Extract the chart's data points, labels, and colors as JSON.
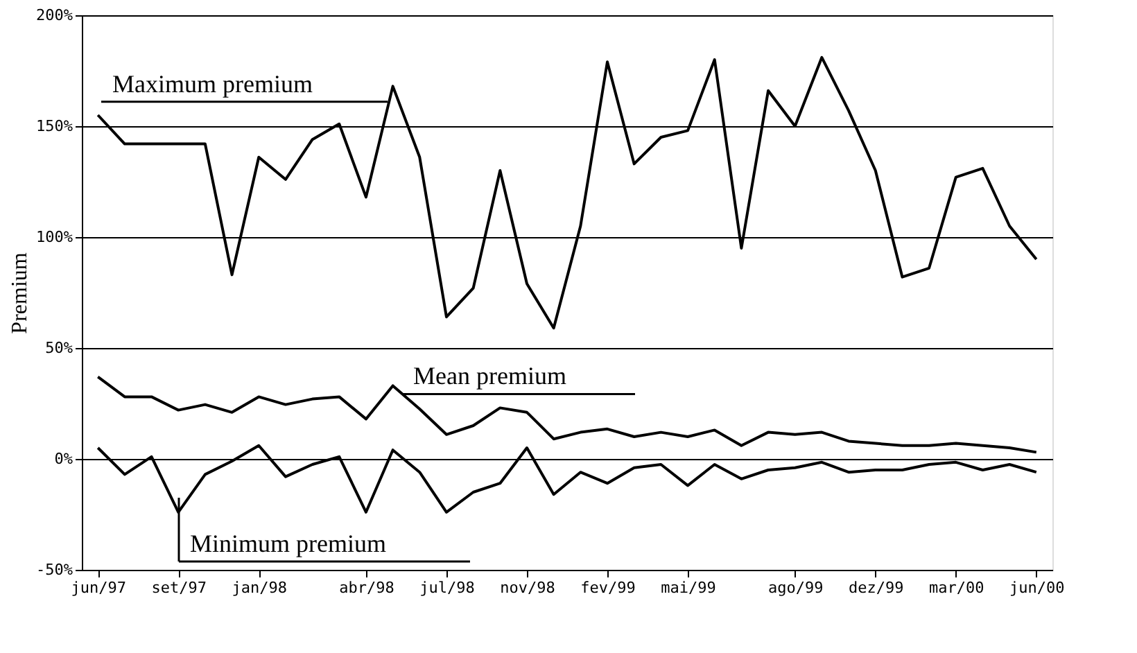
{
  "chart_data": {
    "type": "line",
    "ylabel": "Premium",
    "categories": [
      "jun/97",
      null,
      null,
      "set/97",
      null,
      null,
      "jan/98",
      null,
      null,
      null,
      "abr/98",
      null,
      null,
      "jul/98",
      null,
      null,
      "nov/98",
      null,
      null,
      "fev/99",
      null,
      null,
      "mai/99",
      null,
      null,
      null,
      "ago/99",
      null,
      null,
      "dez/99",
      null,
      null,
      "mar/00",
      null,
      null,
      "jun/00"
    ],
    "series": [
      {
        "name": "Maximum premium",
        "color": "#000000",
        "values": [
          155,
          142,
          142,
          142,
          142,
          83,
          136,
          126,
          144,
          151,
          118,
          168,
          136,
          64,
          77,
          130,
          79,
          59,
          105,
          179,
          133,
          145,
          148,
          180,
          95,
          166,
          150,
          181,
          157,
          130,
          82,
          86,
          127,
          131,
          105,
          90
        ]
      },
      {
        "name": "Mean premium",
        "color": "#000000",
        "values": [
          37,
          28,
          28,
          22,
          24.5,
          21,
          28,
          24.5,
          27,
          28,
          18,
          33,
          22.5,
          11,
          15,
          23,
          21,
          9,
          12,
          13.5,
          10,
          12,
          10,
          13,
          6,
          12,
          11,
          12,
          8,
          7,
          6,
          6,
          7,
          6,
          5,
          3
        ]
      },
      {
        "name": "Minimum premium",
        "color": "#000000",
        "values": [
          5,
          -7,
          1,
          -24,
          -7,
          -1,
          6,
          -8,
          -2.5,
          1,
          -24,
          4,
          -6,
          -24,
          -15,
          -11,
          5,
          -16,
          -6,
          -11,
          -4,
          -2.5,
          -12,
          -2.5,
          -9,
          -5,
          -4,
          -1.5,
          -6,
          -5,
          -5,
          -2.5,
          -1.5,
          -5,
          -2.5,
          -6
        ]
      }
    ],
    "ylim": [
      -50,
      200
    ],
    "yticks": [
      {
        "value": -50,
        "label": "-50%"
      },
      {
        "value": 0,
        "label": "0%"
      },
      {
        "value": 50,
        "label": "50%"
      },
      {
        "value": 100,
        "label": "100%"
      },
      {
        "value": 150,
        "label": "150%"
      },
      {
        "value": 200,
        "label": "200%"
      }
    ],
    "grid": "y",
    "marker": "none",
    "line_style": "solid"
  }
}
